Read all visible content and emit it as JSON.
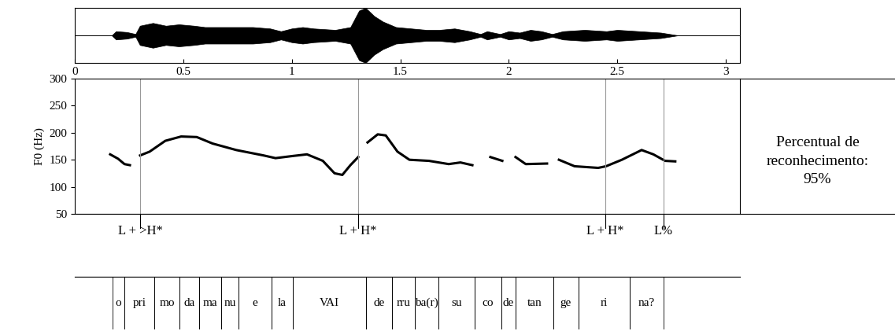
{
  "chart_data": {
    "type": "line",
    "ylabel": "F0 (Hz)",
    "color": "#000000",
    "xlim": [
      0,
      3.065
    ],
    "ylim": [
      50,
      300
    ],
    "xticks": [
      0,
      0.5,
      1,
      1.5,
      2,
      2.5,
      3
    ],
    "yticks": [
      50,
      100,
      150,
      200,
      250,
      300
    ],
    "x": [
      0.163,
      0.199,
      0.229,
      0.254,
      0.28,
      0.301,
      0.345,
      0.417,
      0.49,
      0.562,
      0.635,
      0.744,
      0.87,
      0.925,
      1.005,
      1.07,
      1.143,
      1.197,
      1.233,
      1.27,
      1.306,
      1.33,
      1.349,
      1.396,
      1.433,
      1.487,
      1.542,
      1.632,
      1.723,
      1.777,
      1.832,
      1.87,
      1.915,
      1.97,
      2.0,
      2.031,
      2.078,
      2.176,
      2.2,
      2.231,
      2.303,
      2.412,
      2.448,
      2.521,
      2.612,
      2.666,
      2.72,
      2.767
    ],
    "values": [
      160,
      152,
      142,
      140,
      null,
      158,
      165,
      185,
      193,
      192,
      180,
      168,
      158,
      153,
      157,
      160,
      148,
      125,
      122,
      140,
      155,
      null,
      182,
      197,
      195,
      165,
      150,
      148,
      142,
      145,
      140,
      null,
      155,
      148,
      null,
      155,
      142,
      143,
      null,
      150,
      138,
      135,
      138,
      150,
      168,
      160,
      148,
      147
    ]
  },
  "waveform": {
    "amplitude_range": [
      -1,
      1
    ],
    "x": [
      0,
      0.17,
      0.19,
      0.24,
      0.28,
      0.3,
      0.36,
      0.42,
      0.48,
      0.55,
      0.6,
      0.68,
      0.75,
      0.82,
      0.9,
      0.95,
      1.0,
      1.05,
      1.1,
      1.2,
      1.27,
      1.31,
      1.34,
      1.38,
      1.42,
      1.48,
      1.55,
      1.62,
      1.68,
      1.75,
      1.82,
      1.87,
      1.9,
      1.96,
      2.0,
      2.05,
      2.1,
      2.15,
      2.2,
      2.25,
      2.35,
      2.45,
      2.5,
      2.6,
      2.7,
      2.78,
      3.065
    ],
    "amplitude": [
      0,
      0,
      0.15,
      0.12,
      0.05,
      0.35,
      0.45,
      0.35,
      0.4,
      0.35,
      0.3,
      0.3,
      0.3,
      0.3,
      0.25,
      0.15,
      0.25,
      0.3,
      0.25,
      0.2,
      0.3,
      0.9,
      1.0,
      0.7,
      0.5,
      0.3,
      0.25,
      0.2,
      0.2,
      0.25,
      0.15,
      0.05,
      0.15,
      0.05,
      0.15,
      0.1,
      0.2,
      0.15,
      0.05,
      0.15,
      0.2,
      0.15,
      0.2,
      0.15,
      0.1,
      0,
      0
    ]
  },
  "tones": [
    {
      "time": 0.301,
      "label": "L + >H*"
    },
    {
      "time": 1.306,
      "label": "L + H*"
    },
    {
      "time": 2.445,
      "label": "L + H*"
    },
    {
      "time": 2.713,
      "label": "L%"
    }
  ],
  "syllables": [
    {
      "start": 0.174,
      "end": 0.229,
      "label": "o"
    },
    {
      "start": 0.229,
      "end": 0.366,
      "label": "pri"
    },
    {
      "start": 0.366,
      "end": 0.482,
      "label": "mo"
    },
    {
      "start": 0.482,
      "end": 0.573,
      "label": "da"
    },
    {
      "start": 0.573,
      "end": 0.675,
      "label": "ma"
    },
    {
      "start": 0.675,
      "end": 0.754,
      "label": "nu"
    },
    {
      "start": 0.754,
      "end": 0.907,
      "label": "e"
    },
    {
      "start": 0.907,
      "end": 1.005,
      "label": "la"
    },
    {
      "start": 1.005,
      "end": 1.342,
      "label": "VAI"
    },
    {
      "start": 1.342,
      "end": 1.462,
      "label": "de"
    },
    {
      "start": 1.462,
      "end": 1.567,
      "label": "rru"
    },
    {
      "start": 1.567,
      "end": 1.676,
      "label": "ba(r)"
    },
    {
      "start": 1.676,
      "end": 1.843,
      "label": "su"
    },
    {
      "start": 1.843,
      "end": 1.966,
      "label": "co"
    },
    {
      "start": 1.966,
      "end": 2.031,
      "label": "de"
    },
    {
      "start": 2.031,
      "end": 2.205,
      "label": "tan"
    },
    {
      "start": 2.205,
      "end": 2.321,
      "label": "ge"
    },
    {
      "start": 2.321,
      "end": 2.557,
      "label": "ri"
    },
    {
      "start": 2.557,
      "end": 2.713,
      "label": "na?"
    }
  ],
  "recognition": {
    "lines": [
      "Percentual de",
      "reconhecimento:"
    ],
    "value_label": "95%"
  }
}
